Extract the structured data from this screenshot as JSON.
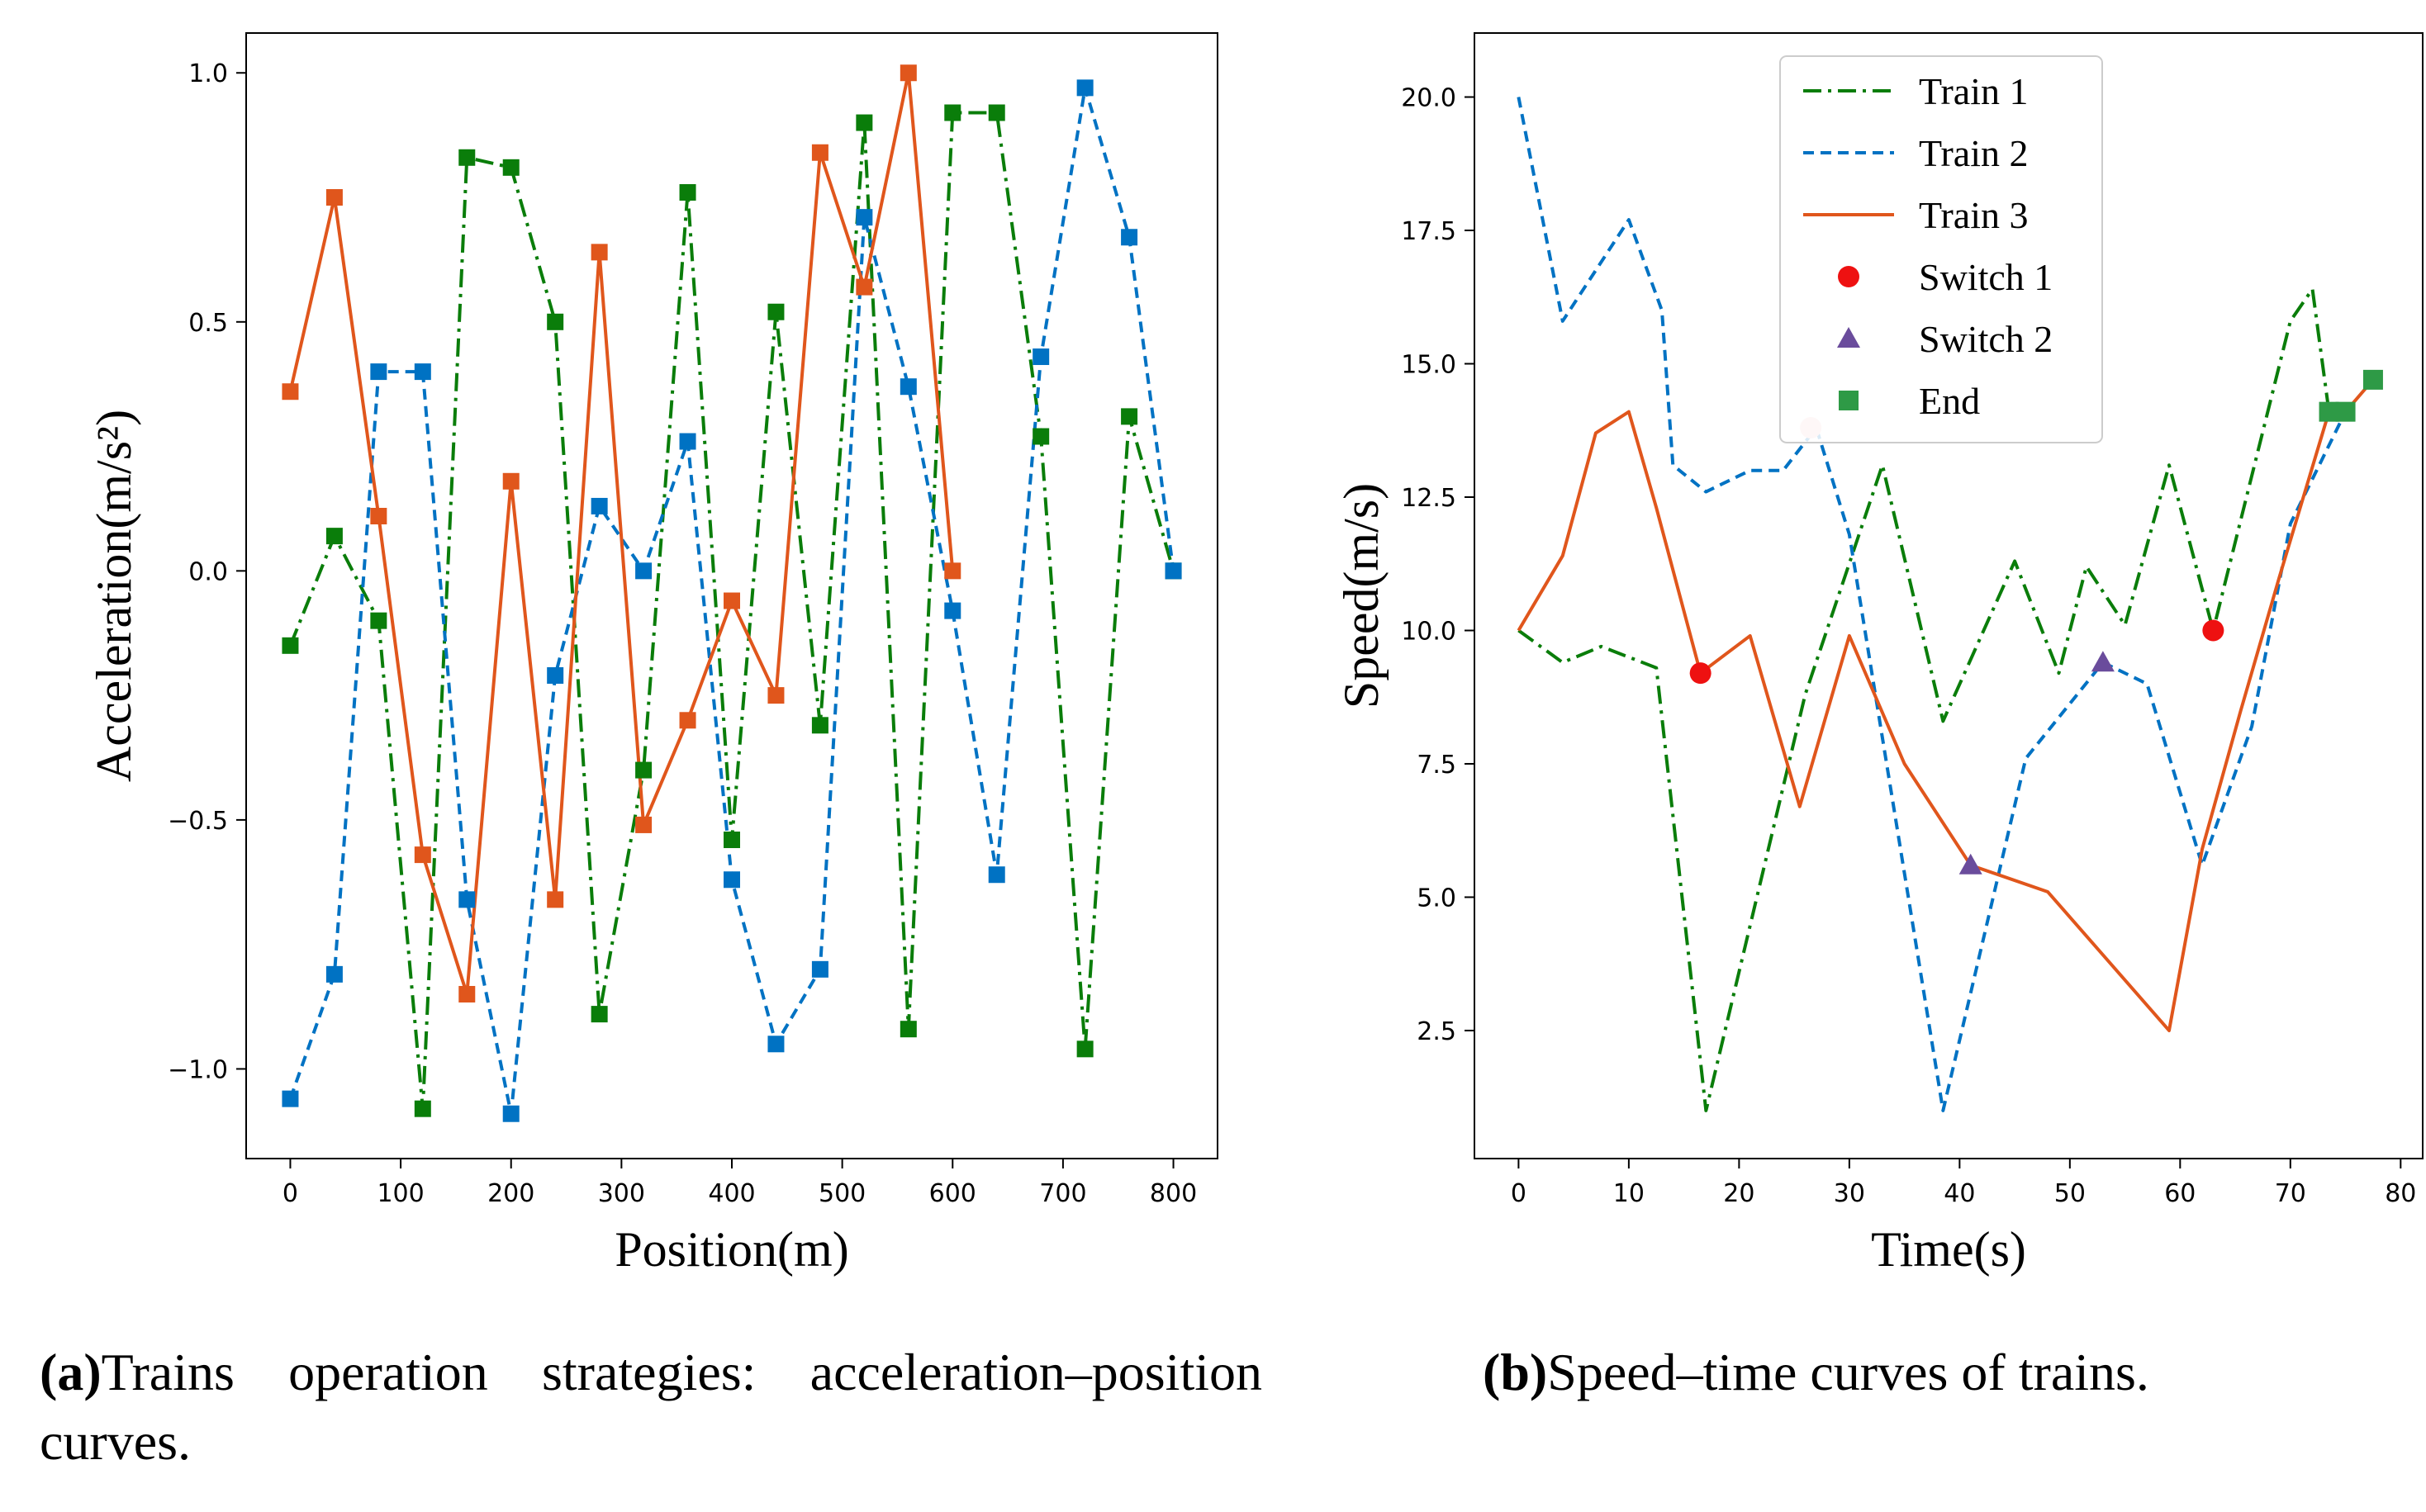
{
  "charts": {
    "a": {
      "xlabel": "Position(m)",
      "ylabel": "Acceleration(m/s²)",
      "xlim": [
        -40,
        840
      ],
      "ylim": [
        -1.18,
        1.08
      ],
      "xticks": [
        "0",
        "100",
        "200",
        "300",
        "400",
        "500",
        "600",
        "700",
        "800"
      ],
      "yticks": [
        "−1.0",
        "−0.5",
        "0.0",
        "0.5",
        "1.0"
      ]
    },
    "b": {
      "xlabel": "Time(s)",
      "ylabel": "Speed(m/s)",
      "xlim": [
        -4,
        82
      ],
      "ylim": [
        0.1,
        21.2
      ],
      "xticks": [
        "0",
        "10",
        "20",
        "30",
        "40",
        "50",
        "60",
        "70",
        "80"
      ],
      "yticks": [
        "2.5",
        "5.0",
        "7.5",
        "10.0",
        "12.5",
        "15.0",
        "17.5",
        "20.0"
      ],
      "legend": [
        "Train 1",
        "Train 2",
        "Train 3",
        "Switch 1",
        "Switch 2",
        "End"
      ]
    }
  },
  "colors": {
    "train1": "#0a7d0a",
    "train2": "#0072c3",
    "train3": "#e0561c",
    "switch1": "#ee1111",
    "switch2": "#6a4c9c",
    "end": "#2e9a46"
  },
  "captions": {
    "a": {
      "tag": "(a)",
      "text": "Trains operation strategies: acceleration–position curves."
    },
    "b": {
      "tag": "(b)",
      "text": "Speed–time curves of trains."
    }
  },
  "chart_data": [
    {
      "type": "line",
      "title": "",
      "xlabel": "Position(m)",
      "ylabel": "Acceleration(m/s²)",
      "x": [
        0,
        40,
        80,
        120,
        160,
        200,
        240,
        280,
        320,
        360,
        400,
        440,
        480,
        520,
        560,
        600,
        640,
        680,
        720,
        760,
        800
      ],
      "series": [
        {
          "name": "Train 1",
          "x": [
            0,
            40,
            80,
            120,
            160,
            200,
            240,
            280,
            320,
            360,
            400,
            440,
            480,
            520,
            560,
            600,
            640,
            680,
            720,
            760,
            800
          ],
          "values": [
            -0.15,
            0.07,
            -0.1,
            -1.08,
            0.83,
            0.81,
            0.5,
            -0.89,
            -0.4,
            0.76,
            -0.54,
            0.52,
            -0.31,
            0.9,
            -0.92,
            0.92,
            0.92,
            0.27,
            -0.96,
            0.31,
            0.0
          ]
        },
        {
          "name": "Train 2",
          "x": [
            0,
            40,
            80,
            120,
            160,
            200,
            240,
            280,
            320,
            360,
            400,
            440,
            480,
            520,
            560,
            600,
            640,
            680,
            720,
            760,
            800
          ],
          "values": [
            -1.06,
            -0.81,
            0.4,
            0.4,
            -0.66,
            -1.09,
            -0.21,
            0.13,
            0.0,
            0.26,
            -0.62,
            -0.95,
            -0.8,
            0.71,
            0.37,
            -0.08,
            -0.61,
            0.43,
            0.97,
            0.67,
            0.0
          ]
        },
        {
          "name": "Train 3",
          "x": [
            0,
            40,
            80,
            120,
            160,
            200,
            240,
            280,
            320,
            360,
            400,
            440,
            480,
            520,
            560,
            600
          ],
          "values": [
            0.36,
            0.75,
            0.11,
            -0.57,
            -0.85,
            0.18,
            -0.66,
            0.64,
            -0.51,
            -0.3,
            -0.06,
            -0.25,
            0.84,
            0.57,
            1.0,
            0.0
          ]
        }
      ],
      "xlim": [
        -40,
        840
      ],
      "ylim": [
        -1.18,
        1.08
      ]
    },
    {
      "type": "line",
      "title": "",
      "xlabel": "Time(s)",
      "ylabel": "Speed(m/s)",
      "series": [
        {
          "name": "Train 1",
          "x": [
            0,
            4,
            7.5,
            12.5,
            17,
            26,
            33,
            38.5,
            45,
            49,
            51.5,
            55,
            59,
            63,
            70,
            72,
            73.5
          ],
          "values": [
            10.0,
            9.4,
            9.7,
            9.3,
            1.0,
            8.8,
            13.1,
            8.3,
            11.3,
            9.2,
            11.2,
            10.1,
            13.1,
            10.0,
            15.8,
            16.4,
            14.1
          ]
        },
        {
          "name": "Train 2",
          "x": [
            0,
            4,
            10,
            13,
            14,
            17,
            21,
            24,
            27,
            30,
            38.5,
            46,
            53,
            57,
            62,
            66.5,
            70,
            75
          ],
          "values": [
            20.0,
            15.8,
            17.7,
            16.0,
            13.1,
            12.6,
            13.0,
            13.0,
            13.8,
            11.8,
            1.0,
            7.6,
            9.4,
            9.0,
            5.6,
            8.2,
            12.0,
            14.1
          ]
        },
        {
          "name": "Train 3",
          "x": [
            0,
            4,
            7,
            10,
            12.5,
            16.5,
            21,
            25.5,
            30,
            35,
            41,
            48,
            59,
            62,
            65.5,
            69,
            73.5,
            75,
            77.5
          ],
          "values": [
            10.0,
            11.4,
            13.7,
            14.1,
            12.3,
            9.2,
            9.9,
            6.7,
            9.9,
            7.5,
            5.6,
            5.1,
            2.5,
            5.9,
            8.5,
            11.0,
            14.1,
            14.1,
            14.7
          ]
        }
      ],
      "markers": [
        {
          "name": "Switch 1",
          "marker": "circle",
          "points": [
            [
              16.5,
              9.2
            ],
            [
              26.5,
              13.8
            ],
            [
              63,
              10.0
            ]
          ]
        },
        {
          "name": "Switch 2",
          "marker": "triangle",
          "points": [
            [
              41,
              5.6
            ],
            [
              53,
              9.4
            ]
          ]
        },
        {
          "name": "End",
          "marker": "square",
          "points": [
            [
              73.5,
              14.1
            ],
            [
              75,
              14.1
            ],
            [
              77.5,
              14.7
            ]
          ]
        }
      ],
      "xlim": [
        -4,
        82
      ],
      "ylim": [
        0.1,
        21.2
      ],
      "legend": "top-center"
    }
  ]
}
